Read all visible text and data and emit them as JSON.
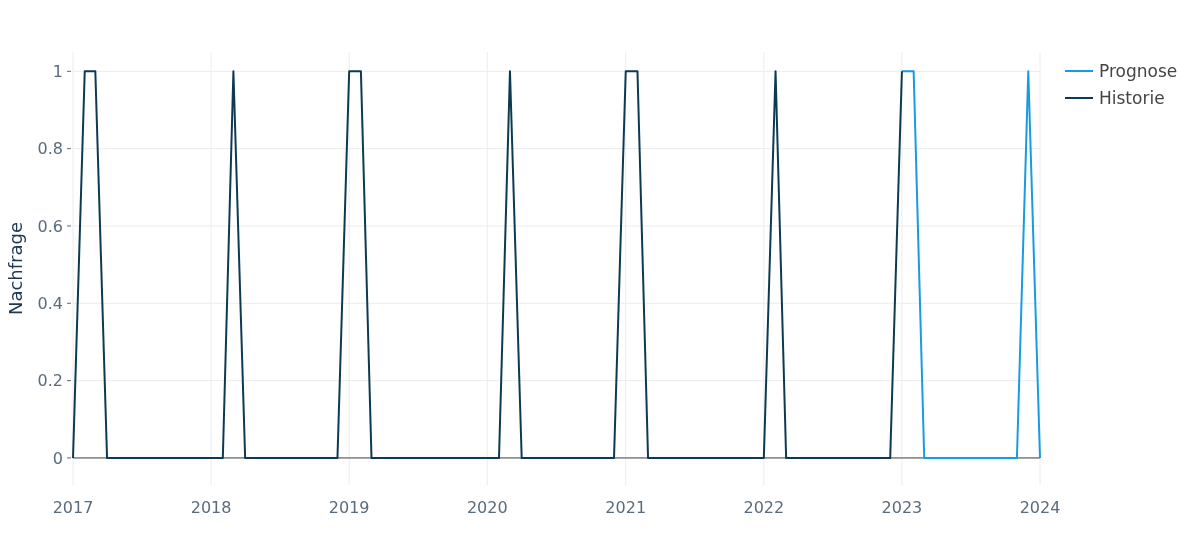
{
  "chart_data": {
    "type": "line",
    "ylabel": "Nachfrage",
    "xlim": [
      "2017-01",
      "2024-01"
    ],
    "ylim": [
      -0.07,
      1.05
    ],
    "xticks": [
      "2017",
      "2018",
      "2019",
      "2020",
      "2021",
      "2022",
      "2023",
      "2024"
    ],
    "yticks": [
      0,
      0.2,
      0.4,
      0.6,
      0.8,
      1
    ],
    "grid": true,
    "legend": "top right",
    "marker": "none",
    "line_style": "solid",
    "series": [
      {
        "name": "Prognose",
        "color": "#1a9ae0",
        "x": [
          "2023-01",
          "2023-02",
          "2023-03",
          "2023-04",
          "2023-05",
          "2023-06",
          "2023-07",
          "2023-08",
          "2023-09",
          "2023-10",
          "2023-11",
          "2023-12",
          "2024-01"
        ],
        "values": [
          1,
          1,
          0,
          0,
          0,
          0,
          0,
          0,
          0,
          0,
          0,
          1,
          0
        ]
      },
      {
        "name": "Historie",
        "color": "#0d3a52",
        "x": [
          "2017-01",
          "2017-02",
          "2017-03",
          "2017-04",
          "2017-05",
          "2017-06",
          "2017-07",
          "2017-08",
          "2017-09",
          "2017-10",
          "2017-11",
          "2017-12",
          "2018-01",
          "2018-02",
          "2018-03",
          "2018-04",
          "2018-05",
          "2018-06",
          "2018-07",
          "2018-08",
          "2018-09",
          "2018-10",
          "2018-11",
          "2018-12",
          "2019-01",
          "2019-02",
          "2019-03",
          "2019-04",
          "2019-05",
          "2019-06",
          "2019-07",
          "2019-08",
          "2019-09",
          "2019-10",
          "2019-11",
          "2019-12",
          "2020-01",
          "2020-02",
          "2020-03",
          "2020-04",
          "2020-05",
          "2020-06",
          "2020-07",
          "2020-08",
          "2020-09",
          "2020-10",
          "2020-11",
          "2020-12",
          "2021-01",
          "2021-02",
          "2021-03",
          "2021-04",
          "2021-05",
          "2021-06",
          "2021-07",
          "2021-08",
          "2021-09",
          "2021-10",
          "2021-11",
          "2021-12",
          "2022-01",
          "2022-02",
          "2022-03",
          "2022-04",
          "2022-05",
          "2022-06",
          "2022-07",
          "2022-08",
          "2022-09",
          "2022-10",
          "2022-11",
          "2022-12",
          "2023-01"
        ],
        "values": [
          0,
          1,
          1,
          0,
          0,
          0,
          0,
          0,
          0,
          0,
          0,
          0,
          0,
          0,
          1,
          0,
          0,
          0,
          0,
          0,
          0,
          0,
          0,
          0,
          1,
          1,
          0,
          0,
          0,
          0,
          0,
          0,
          0,
          0,
          0,
          0,
          0,
          0,
          1,
          0,
          0,
          0,
          0,
          0,
          0,
          0,
          0,
          0,
          1,
          1,
          0,
          0,
          0,
          0,
          0,
          0,
          0,
          0,
          0,
          0,
          0,
          1,
          0,
          0,
          0,
          0,
          0,
          0,
          0,
          0,
          0,
          0,
          1
        ]
      }
    ]
  }
}
